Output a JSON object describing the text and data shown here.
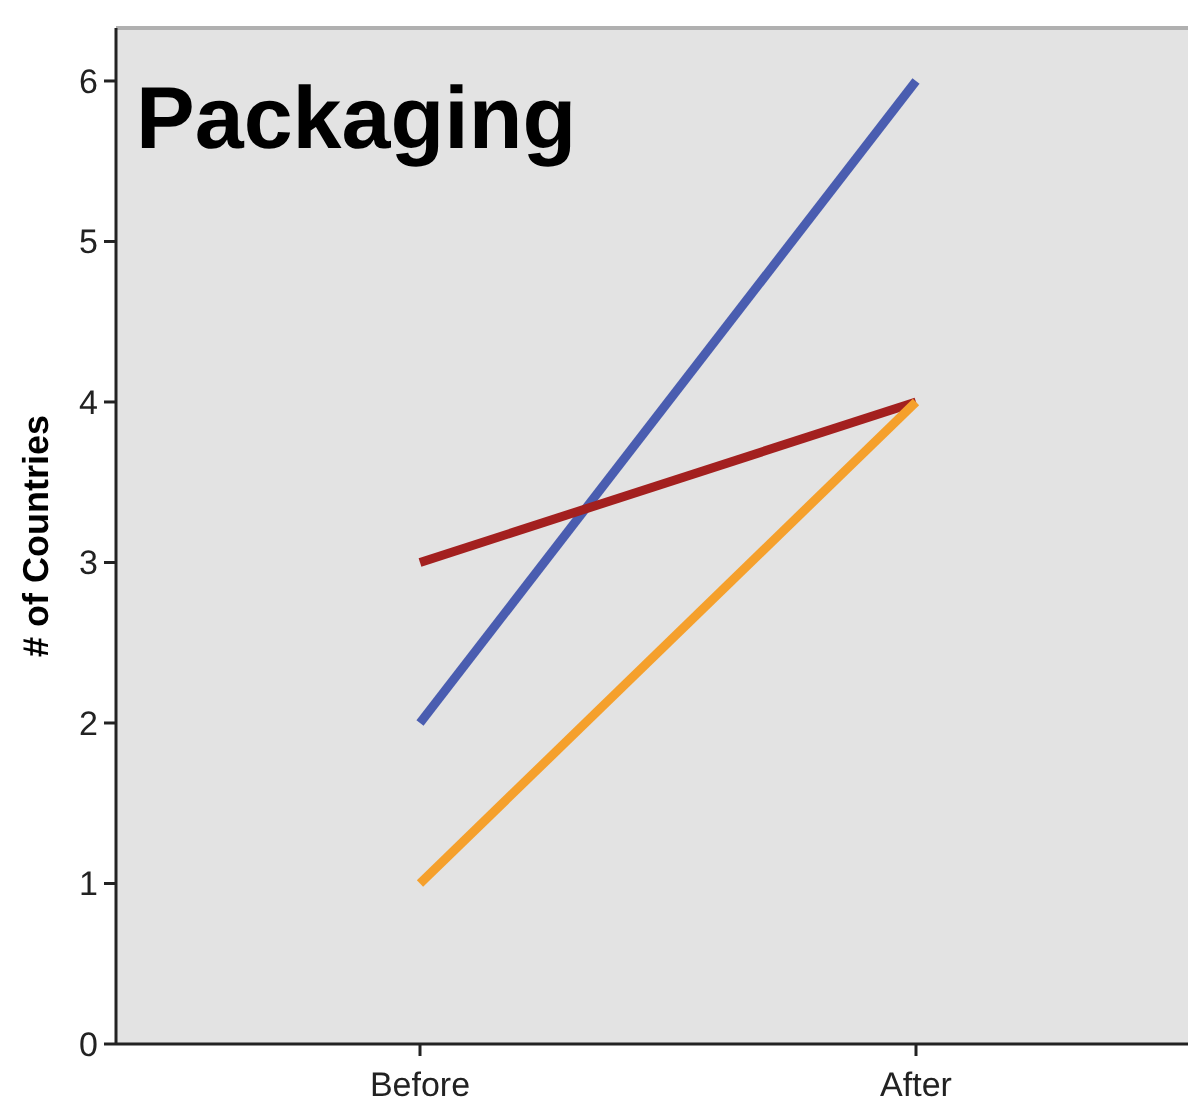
{
  "chart_data": {
    "type": "line",
    "title": "Packaging",
    "ylabel": "# of Countries",
    "categories": [
      "Before",
      "After"
    ],
    "series": [
      {
        "color": "#4a5db0",
        "values": [
          2,
          6
        ]
      },
      {
        "color": "#a3201f",
        "values": [
          3,
          4
        ]
      },
      {
        "color": "#f5a02c",
        "values": [
          1,
          4
        ]
      }
    ],
    "ylim": [
      0,
      6.33
    ],
    "yticks": [
      0,
      1,
      2,
      3,
      4,
      5,
      6
    ],
    "grid": false,
    "marker": "none",
    "line_style": "solid"
  }
}
